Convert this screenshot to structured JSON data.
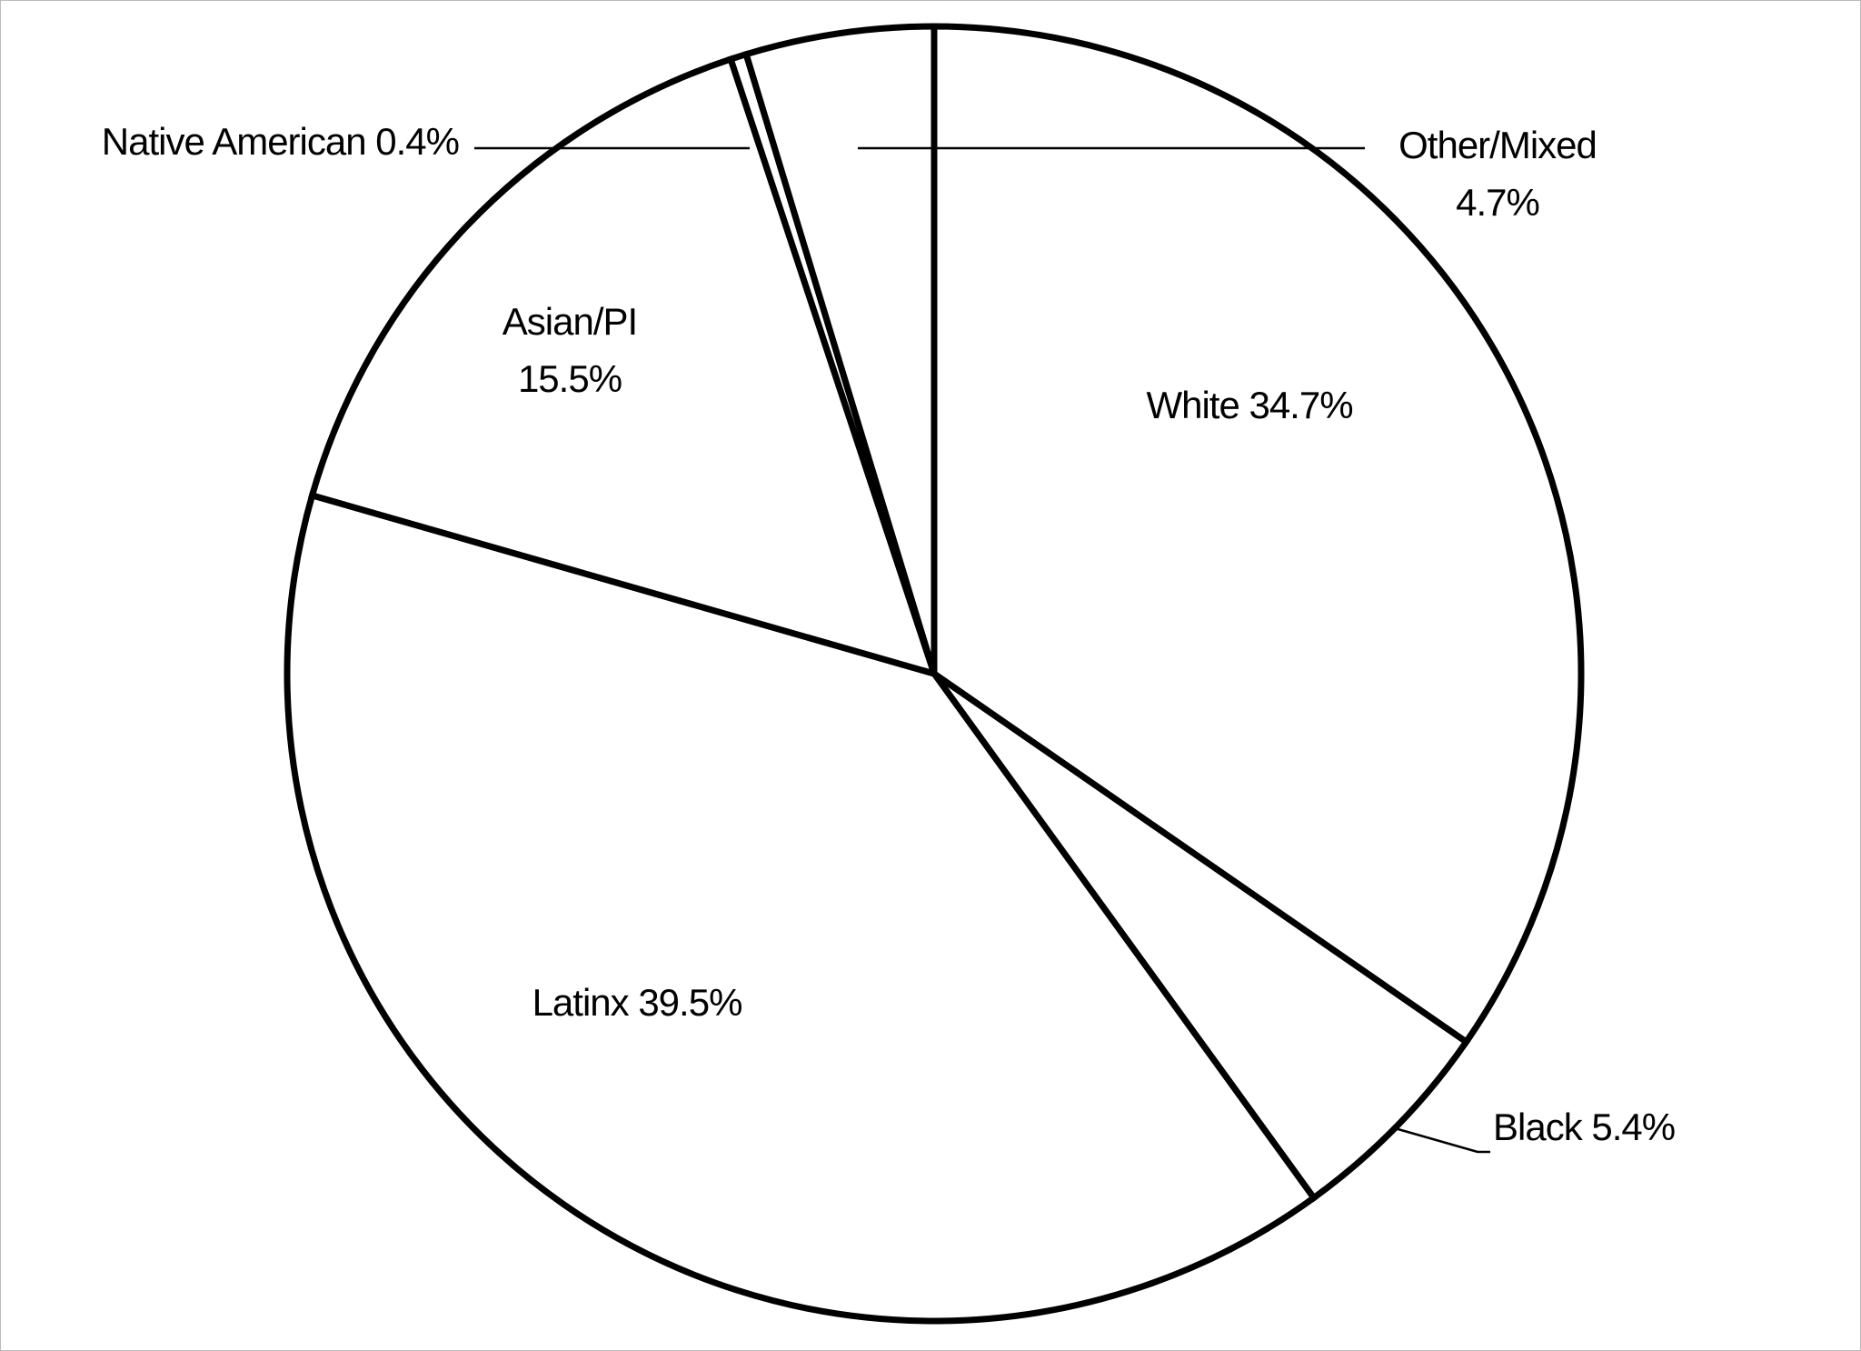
{
  "chart_data": {
    "type": "pie",
    "categories": [
      "White",
      "Black",
      "Latinx",
      "Asian/PI",
      "Native American",
      "Other/Mixed"
    ],
    "values": [
      34.7,
      5.4,
      39.5,
      15.5,
      0.4,
      4.7
    ],
    "value_labels": [
      "34.7%",
      "5.4%",
      "39.5%",
      "15.5%",
      "0.4%",
      "4.7%"
    ],
    "color": "#ffffff"
  }
}
